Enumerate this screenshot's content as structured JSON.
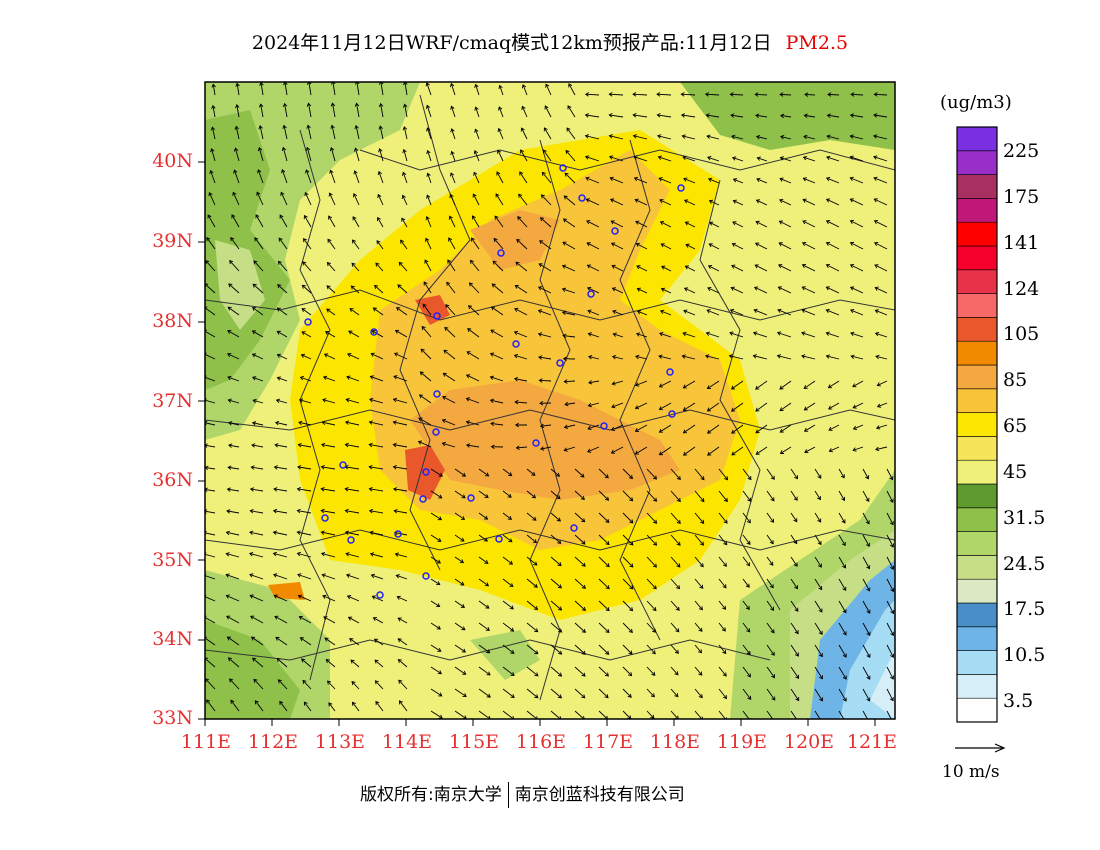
{
  "title": {
    "main": "2024年11月12日WRF/cmaq模式12km预报产品:11月12日",
    "species": "PM2.5"
  },
  "lat_labels": [
    "40N",
    "39N",
    "38N",
    "37N",
    "36N",
    "35N",
    "34N",
    "33N"
  ],
  "lon_labels": [
    "111E",
    "112E",
    "113E",
    "114E",
    "115E",
    "116E",
    "117E",
    "118E",
    "119E",
    "120E",
    "121E"
  ],
  "colorbar": {
    "units": "(ug/m3)",
    "labels": [
      "225",
      "175",
      "141",
      "124",
      "105",
      "85",
      "65",
      "45",
      "31.5",
      "24.5",
      "17.5",
      "10.5",
      "3.5"
    ],
    "colors": [
      "#ffffff",
      "#d6eef8",
      "#a6dcf4",
      "#6fb4e6",
      "#4a8ec8",
      "#dde8c4",
      "#c6de86",
      "#b0d66a",
      "#8ec04a",
      "#5f9a2e",
      "#eef07a",
      "#f6e45a",
      "#fce600",
      "#f8c43a",
      "#f3a840",
      "#f28a00",
      "#e8582a",
      "#f76868",
      "#e8324a",
      "#f5002a",
      "#ff0000",
      "#c01878",
      "#a83060",
      "#9a2ec8",
      "#7a30e0"
    ]
  },
  "vector_label": "10 m/s",
  "copyright": {
    "left": "版权所有:南京大学",
    "right": "南京创蓝科技有限公司"
  },
  "palette": {
    "axis_red": "#e63030",
    "city_marker": "#2020ff",
    "boundary": "#333333"
  }
}
